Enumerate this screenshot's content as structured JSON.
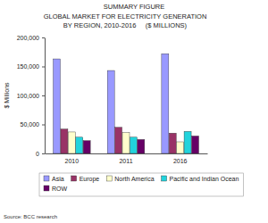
{
  "chart_data": {
    "type": "bar",
    "title": "SUMMARY FIGURE",
    "subtitle": [
      "GLOBAL MARKET FOR ELECTRICITY GENERATION",
      "BY REGION, 2010-2016     ($ MILLIONS)"
    ],
    "y_label": "$ Millions",
    "source": "Source: BCC research",
    "categories": [
      "2010",
      "2011",
      "2016"
    ],
    "series": [
      {
        "name": "Asia",
        "color": "#9999ff",
        "values": [
          163000,
          143000,
          172000
        ]
      },
      {
        "name": "Europe",
        "color": "#993366",
        "values": [
          42000,
          45000,
          35000
        ]
      },
      {
        "name": "North America",
        "color": "#ffffcc",
        "values": [
          37000,
          36000,
          20000
        ]
      },
      {
        "name": "Pacific and Indian Ocean",
        "color": "#22d3dc",
        "values": [
          28000,
          28000,
          38000
        ]
      },
      {
        "name": "ROW",
        "color": "#660066",
        "values": [
          22000,
          24000,
          30000
        ]
      }
    ],
    "ylim": [
      0,
      200000
    ],
    "yticks": [
      0,
      {
        "value": 50000,
        "label": "50,000"
      },
      {
        "value": 100000,
        "label": "100,000"
      },
      {
        "value": 150000,
        "label": "150,000"
      },
      {
        "value": 200000,
        "label": "200,000"
      }
    ],
    "grid": false,
    "legend": "bottom"
  }
}
